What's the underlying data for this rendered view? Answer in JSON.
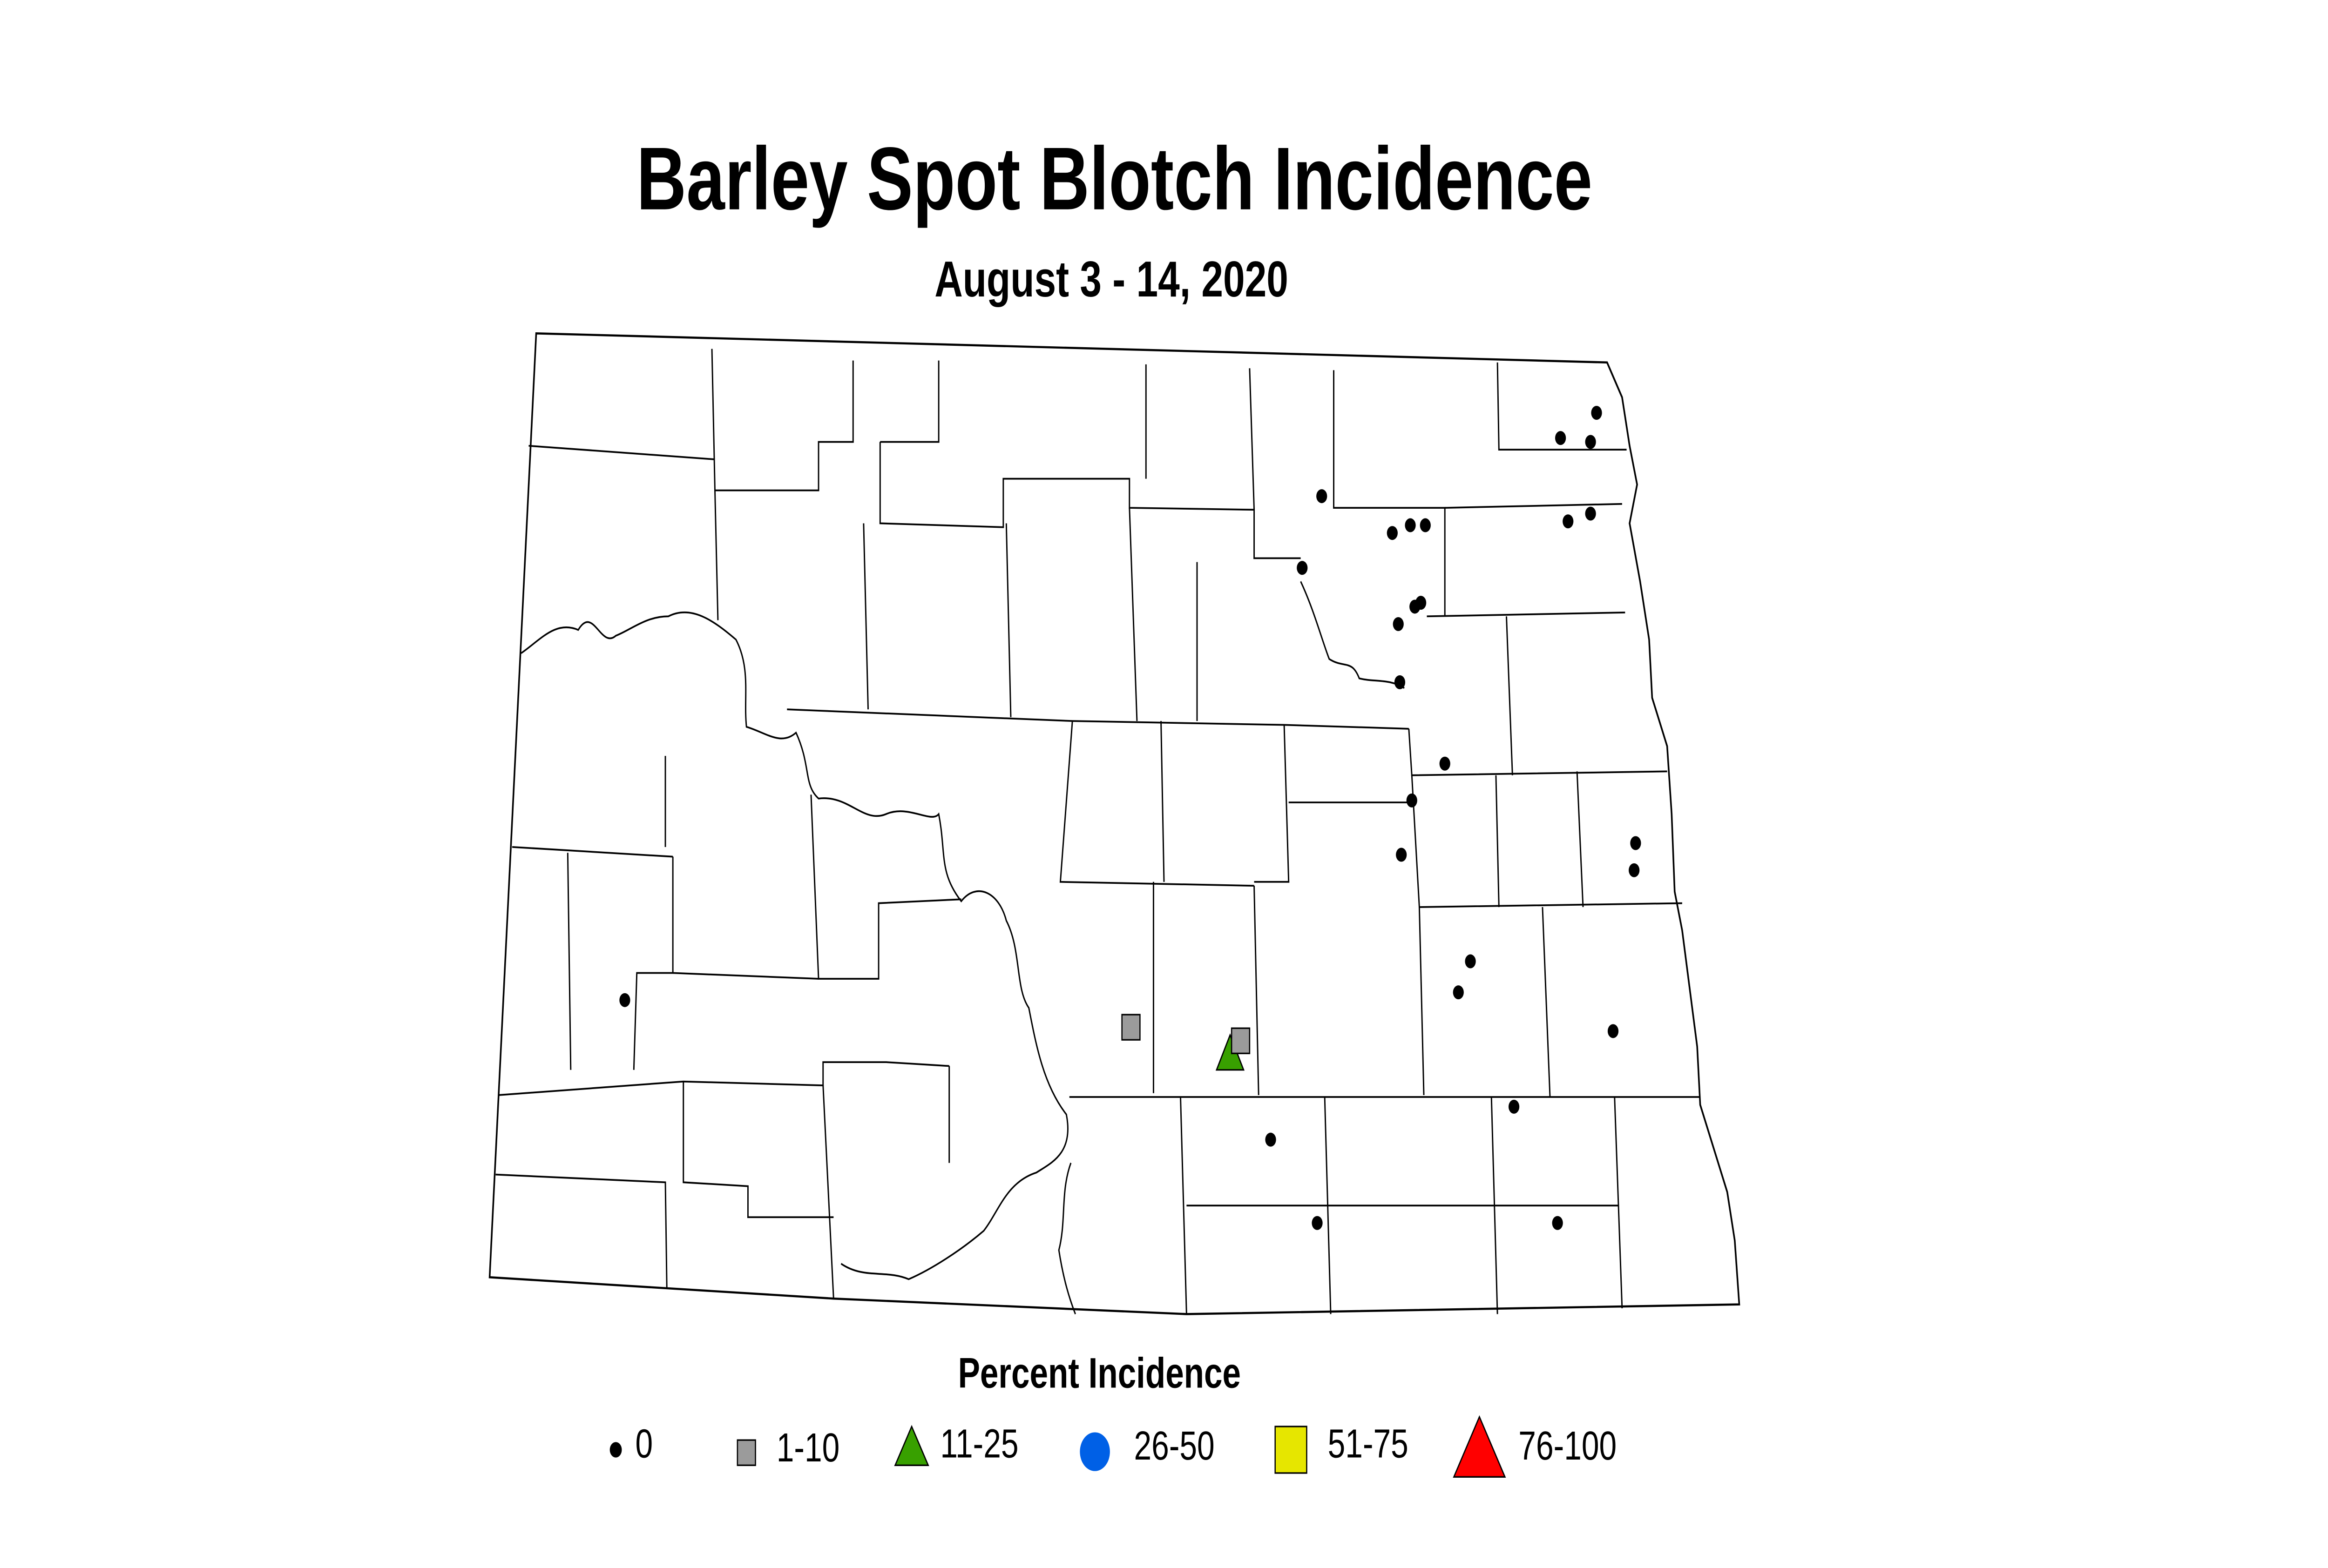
{
  "title": "Barley Spot Blotch Incidence",
  "subtitle": "August 3 - 14, 2020",
  "legend": {
    "title": "Percent Incidence",
    "items": [
      {
        "label": "0",
        "shape": "dot",
        "color": "#000000"
      },
      {
        "label": "1-10",
        "shape": "square",
        "color": "#9b9b9b"
      },
      {
        "label": "11-25",
        "shape": "triangle",
        "color": "#38a000"
      },
      {
        "label": "26-50",
        "shape": "circle",
        "color": "#0060e6"
      },
      {
        "label": "51-75",
        "shape": "square",
        "color": "#e6e600"
      },
      {
        "label": "76-100",
        "shape": "triangle",
        "color": "#ff0000"
      }
    ]
  },
  "chart_data": {
    "type": "scatter",
    "title": "Barley Spot Blotch Incidence",
    "subtitle": "August 3 - 14, 2020",
    "region": "North Dakota counties",
    "observations": [
      {
        "category": "0",
        "count": 27
      },
      {
        "category": "1-10",
        "count": 2
      },
      {
        "category": "11-25",
        "count": 1
      },
      {
        "category": "26-50",
        "count": 0
      },
      {
        "category": "51-75",
        "count": 0
      },
      {
        "category": "76-100",
        "count": 0
      }
    ]
  }
}
